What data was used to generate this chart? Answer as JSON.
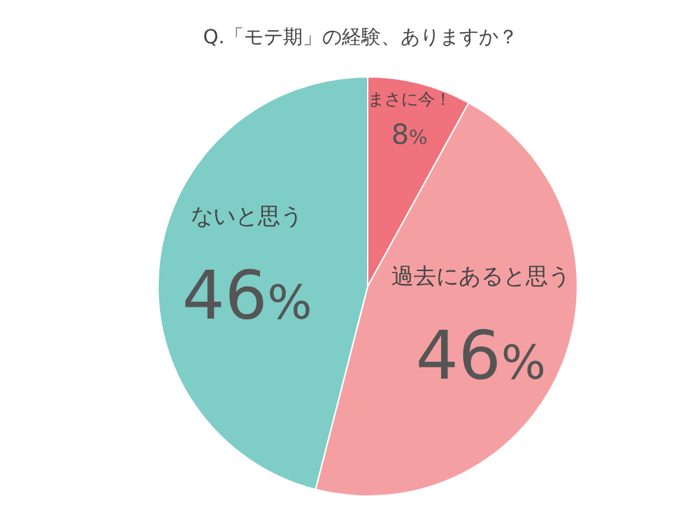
{
  "chart_data": {
    "type": "pie",
    "title": "Q.「モテ期」の経験、ありますか？",
    "categories": [
      "まさに今！",
      "過去にあると思う",
      "ないと思う"
    ],
    "values": [
      8,
      46,
      46
    ],
    "colors": [
      "#f0727c",
      "#f4a0a3",
      "#7ecdc7"
    ],
    "value_labels": [
      "8%",
      "46%",
      "46%"
    ],
    "legend": false
  }
}
